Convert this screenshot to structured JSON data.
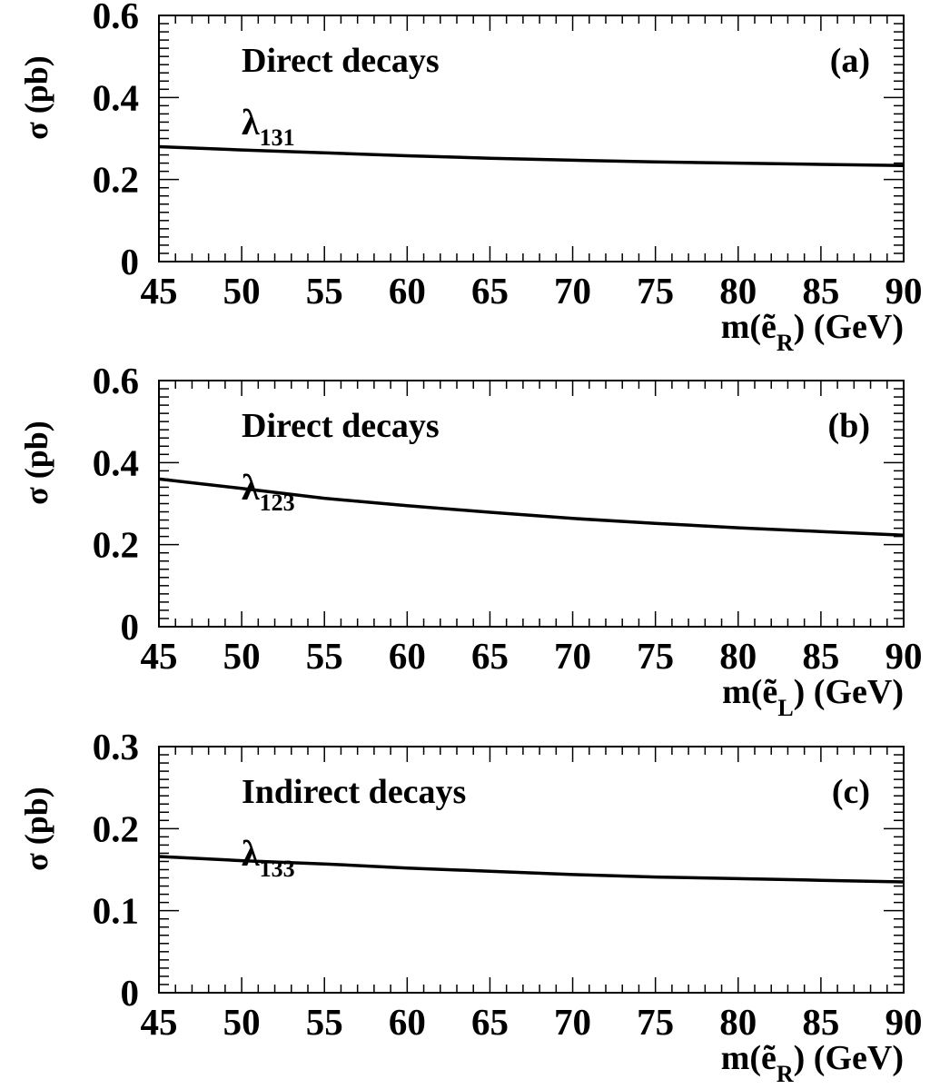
{
  "chart_data": [
    {
      "type": "line",
      "panel_label": "(a)",
      "annotation": "Direct decays",
      "coupling": {
        "symbol": "λ",
        "index": "131"
      },
      "ylabel": "σ (pb)",
      "xlabel": {
        "prefix": "m(",
        "particle": "ẽ",
        "subscript": "R",
        "suffix": ") (GeV)"
      },
      "xlim": [
        45,
        90
      ],
      "ylim": [
        0,
        0.6
      ],
      "xticks": [
        "45",
        "50",
        "55",
        "60",
        "65",
        "70",
        "75",
        "80",
        "85",
        "90"
      ],
      "yticks": [
        "0",
        "0.2",
        "0.4",
        "0.6"
      ],
      "x": [
        45,
        50,
        55,
        60,
        65,
        70,
        75,
        80,
        85,
        90
      ],
      "y": [
        0.28,
        0.272,
        0.265,
        0.258,
        0.252,
        0.247,
        0.243,
        0.24,
        0.237,
        0.234
      ]
    },
    {
      "type": "line",
      "panel_label": "(b)",
      "annotation": "Direct decays",
      "coupling": {
        "symbol": "λ",
        "index": "123"
      },
      "ylabel": "σ (pb)",
      "xlabel": {
        "prefix": "m(",
        "particle": "ẽ",
        "subscript": "L",
        "suffix": ") (GeV)"
      },
      "xlim": [
        45,
        90
      ],
      "ylim": [
        0,
        0.6
      ],
      "xticks": [
        "45",
        "50",
        "55",
        "60",
        "65",
        "70",
        "75",
        "80",
        "85",
        "90"
      ],
      "yticks": [
        "0",
        "0.2",
        "0.4",
        "0.6"
      ],
      "x": [
        45,
        50,
        55,
        60,
        65,
        70,
        75,
        80,
        85,
        90
      ],
      "y": [
        0.36,
        0.337,
        0.313,
        0.295,
        0.279,
        0.264,
        0.252,
        0.241,
        0.232,
        0.223
      ]
    },
    {
      "type": "line",
      "panel_label": "(c)",
      "annotation": "Indirect decays",
      "coupling": {
        "symbol": "λ",
        "index": "133"
      },
      "ylabel": "σ (pb)",
      "xlabel": {
        "prefix": "m(",
        "particle": "ẽ",
        "subscript": "R",
        "suffix": ") (GeV)"
      },
      "xlim": [
        45,
        90
      ],
      "ylim": [
        0,
        0.3
      ],
      "xticks": [
        "45",
        "50",
        "55",
        "60",
        "65",
        "70",
        "75",
        "80",
        "85",
        "90"
      ],
      "yticks": [
        "0",
        "0.1",
        "0.2",
        "0.3"
      ],
      "x": [
        45,
        50,
        55,
        60,
        65,
        70,
        75,
        80,
        85,
        90
      ],
      "y": [
        0.166,
        0.161,
        0.157,
        0.152,
        0.148,
        0.144,
        0.141,
        0.139,
        0.137,
        0.135
      ]
    }
  ]
}
